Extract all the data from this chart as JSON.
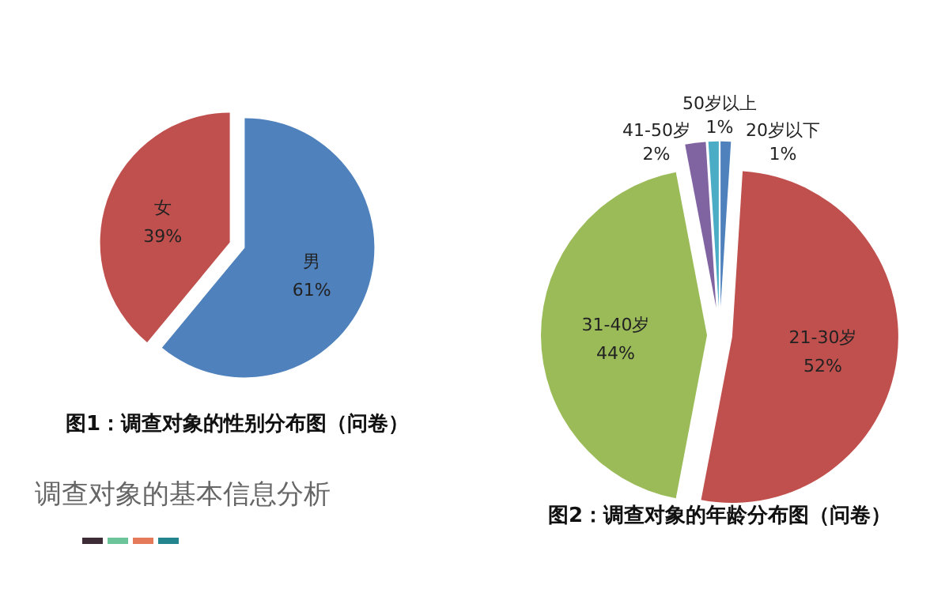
{
  "chart_data": [
    {
      "type": "pie",
      "title": "图1：调查对象的性别分布图（问卷）",
      "categories": [
        "男",
        "女"
      ],
      "values": [
        61,
        39
      ],
      "colors": [
        "#4f81bd",
        "#c0504d"
      ],
      "value_labels": [
        "61%",
        "39%"
      ],
      "annotations": [
        "调查对象的基本信息分析"
      ]
    },
    {
      "type": "pie",
      "title": "图2：调查对象的年龄分布图（问卷）",
      "categories": [
        "20岁以下",
        "21-30岁",
        "31-40岁",
        "41-50岁",
        "50岁以上"
      ],
      "values": [
        1,
        52,
        44,
        2,
        1
      ],
      "colors": [
        "#4f81bd",
        "#c0504d",
        "#9bbb59",
        "#8064a2",
        "#4bacc6"
      ],
      "value_labels": [
        "1%",
        "52%",
        "44%",
        "2%",
        "1%"
      ]
    }
  ]
}
